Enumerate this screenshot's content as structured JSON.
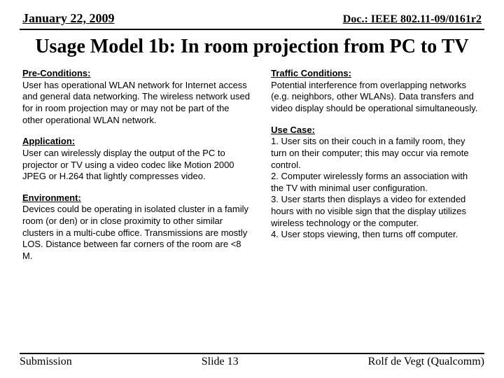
{
  "header": {
    "date": "January 22, 2009",
    "docref": "Doc.: IEEE 802.11-09/0161r2"
  },
  "title": "Usage Model 1b: In room projection from PC to TV",
  "left": {
    "pre_label": "Pre-Conditions:",
    "pre_body": "User has operational WLAN network for Internet access and general data networking. The wireless network used for in room projection may or may not be part of the other operational WLAN network.",
    "app_label": "Application:",
    "app_body": "User can wirelessly display the output of the PC to projector or TV using a video codec like Motion 2000 JPEG or H.264 that lightly compresses video.",
    "env_label": "Environment:",
    "env_body": "Devices could be operating in isolated cluster in a family room (or den) or in close proximity to other similar clusters in a multi-cube office. Transmissions are mostly LOS. Distance between far corners of the room are <8 M."
  },
  "right": {
    "traffic_label": "Traffic Conditions:",
    "traffic_body": "Potential interference from overlapping networks (e.g. neighbors, other WLANs). Data transfers and video display should be operational simultaneously.",
    "usecase_label": "Use Case:",
    "uc1": "1. User sits on their couch in a family room, they turn on their computer; this may occur via remote control.",
    "uc2": "2. Computer wirelessly forms an association with the TV with minimal user configuration.",
    "uc3": "3. User starts then displays a video for extended hours with no visible sign that the display utilizes wireless technology or the computer.",
    "uc4": "4. User stops viewing, then turns off computer."
  },
  "footer": {
    "left": "Submission",
    "center": "Slide 13",
    "right": "Rolf de Vegt (Qualcomm)"
  }
}
